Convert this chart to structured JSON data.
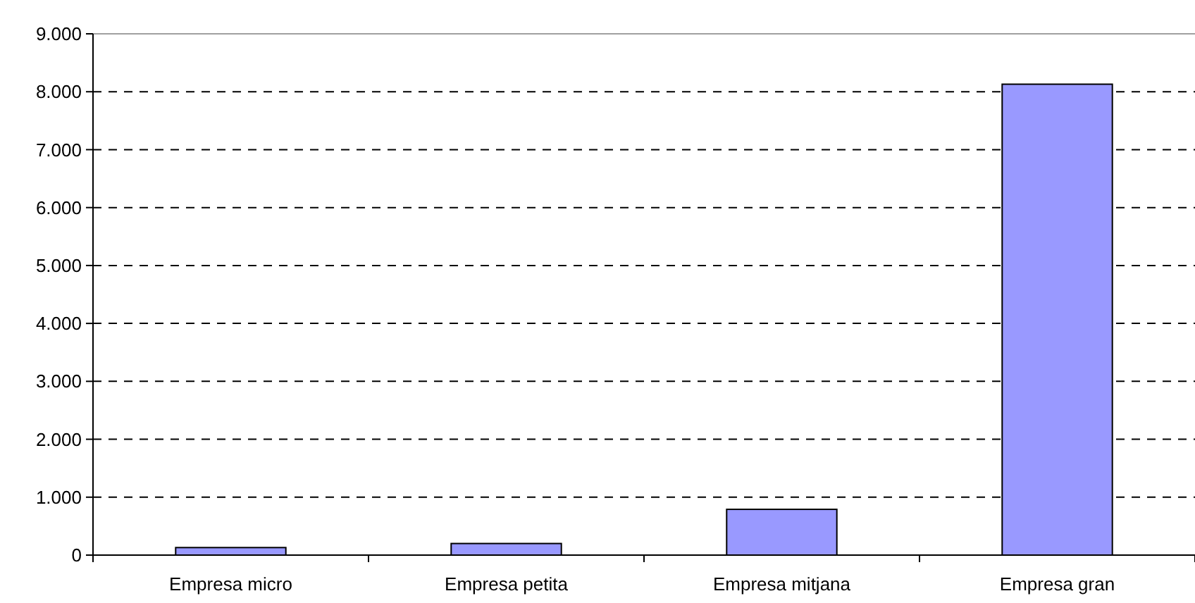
{
  "chart_data": {
    "type": "bar",
    "categories": [
      "Empresa micro",
      "Empresa petita",
      "Empresa mitjana",
      "Empresa gran"
    ],
    "values": [
      130,
      200,
      790,
      8130
    ],
    "color": "#9999ff",
    "ylim": [
      0,
      9000
    ],
    "yticks": [
      {
        "value": 0,
        "label": "0"
      },
      {
        "value": 1000,
        "label": "1.000"
      },
      {
        "value": 2000,
        "label": "2.000"
      },
      {
        "value": 3000,
        "label": "3.000"
      },
      {
        "value": 4000,
        "label": "4.000"
      },
      {
        "value": 5000,
        "label": "5.000"
      },
      {
        "value": 6000,
        "label": "6.000"
      },
      {
        "value": 7000,
        "label": "7.000"
      },
      {
        "value": 8000,
        "label": "8.000"
      },
      {
        "value": 9000,
        "label": "9.000"
      }
    ],
    "grid": "y",
    "line_style": "dashed"
  }
}
